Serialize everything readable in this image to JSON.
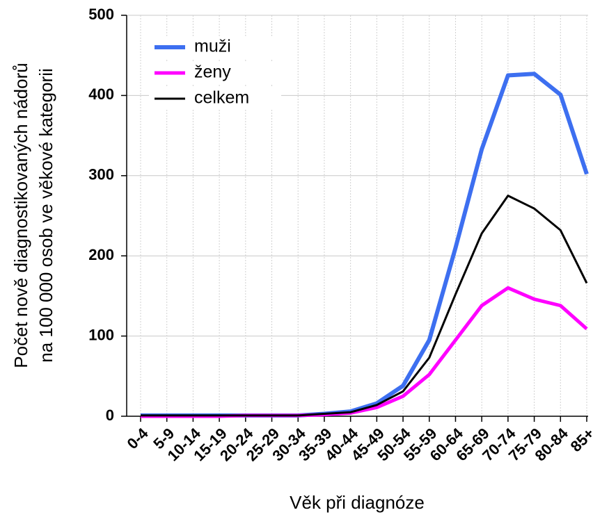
{
  "chart_data": {
    "type": "line",
    "ylabel": [
      "Počet nově diagnostikovaných nádorů",
      "na 100 000 osob ve věkové kategorii"
    ],
    "xlabel": "Věk při diagnóze",
    "categories": [
      "0-4",
      "5-9",
      "10-14",
      "15-19",
      "20-24",
      "25-29",
      "30-34",
      "35-39",
      "40-44",
      "45-49",
      "50-54",
      "55-59",
      "60-64",
      "65-69",
      "70-74",
      "75-79",
      "80-84",
      "85+"
    ],
    "series": [
      {
        "name": "muži",
        "color": "#3d6ff0",
        "width": 6,
        "values": [
          1,
          1,
          1,
          1,
          1,
          1,
          1,
          3,
          6,
          16,
          38,
          95,
          210,
          333,
          425,
          427,
          401,
          302
        ]
      },
      {
        "name": "ženy",
        "color": "#ff00ff",
        "width": 5,
        "values": [
          0,
          0,
          0,
          0,
          1,
          1,
          1,
          2,
          4,
          11,
          25,
          52,
          95,
          138,
          160,
          146,
          138,
          109
        ]
      },
      {
        "name": "celkem",
        "color": "#000000",
        "width": 3,
        "values": [
          1,
          1,
          1,
          1,
          1,
          1,
          1,
          3,
          5,
          14,
          31,
          73,
          152,
          228,
          275,
          259,
          232,
          166
        ]
      }
    ],
    "ylim": [
      0,
      500
    ],
    "yticks": [
      0,
      100,
      200,
      300,
      400,
      500
    ],
    "grid": true,
    "legend": "upper left"
  }
}
